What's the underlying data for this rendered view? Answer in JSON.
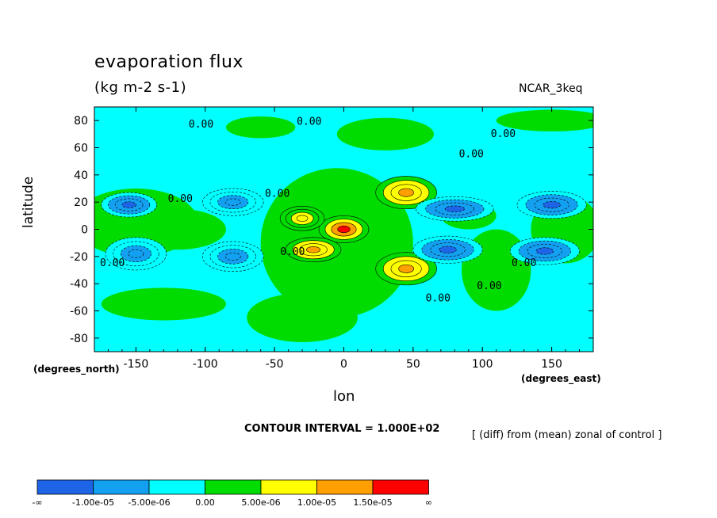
{
  "chart_data": {
    "type": "heatmap",
    "title": "evaporation flux",
    "subtitle": "(kg m-2 s-1)",
    "source_label": "NCAR_3keq",
    "xlabel": "lon",
    "xunits": "(degrees_east)",
    "ylabel": "latitude",
    "yunits": "(degrees_north)",
    "xlim": [
      -180,
      180
    ],
    "ylim": [
      -90,
      90
    ],
    "xticks": [
      -150,
      -100,
      -50,
      0,
      50,
      100,
      150
    ],
    "yticks": [
      -80,
      -60,
      -40,
      -20,
      0,
      20,
      40,
      60,
      80
    ],
    "contour_interval_text": "CONTOUR INTERVAL = 1.000E+02",
    "note": "[ (diff) from (mean) zonal of control ]",
    "contour_labels": [
      {
        "text": "0.00",
        "lon": -103,
        "lat": 75
      },
      {
        "text": "0.00",
        "lon": -25,
        "lat": 77
      },
      {
        "text": "0.00",
        "lon": 115,
        "lat": 68
      },
      {
        "text": "0.00",
        "lon": 92,
        "lat": 53
      },
      {
        "text": "0.00",
        "lon": -118,
        "lat": 20
      },
      {
        "text": "0.00",
        "lon": -48,
        "lat": 24
      },
      {
        "text": "0.00",
        "lon": -167,
        "lat": -27
      },
      {
        "text": "0.00",
        "lon": -37,
        "lat": -19
      },
      {
        "text": "0.00",
        "lon": 130,
        "lat": -27
      },
      {
        "text": "0.00",
        "lon": 68,
        "lat": -53
      },
      {
        "text": "0.00",
        "lon": 105,
        "lat": -44
      }
    ],
    "levels": [
      {
        "label": "-∞",
        "color": "#1e64e6"
      },
      {
        "label": "-1.00e-05",
        "color": "#14a0f0"
      },
      {
        "label": "-5.00e-06",
        "color": "#00ffff"
      },
      {
        "label": "0.00",
        "color": "#00dc00"
      },
      {
        "label": "5.00e-06",
        "color": "#ffff00"
      },
      {
        "label": "1.00e-05",
        "color": "#ffa000"
      },
      {
        "label": "1.50e-05",
        "color": "#ff0000"
      },
      {
        "label": "∞",
        "color": ""
      }
    ],
    "features": [
      {
        "name": "max-1",
        "lon": 0,
        "lat": 0,
        "rlon": 18,
        "rlat": 10,
        "value": 1.8e-05
      },
      {
        "name": "max-2",
        "lon": 45,
        "lat": 27,
        "rlon": 22,
        "rlat": 12,
        "value": 1.3e-05
      },
      {
        "name": "max-3",
        "lon": 45,
        "lat": -29,
        "rlon": 22,
        "rlat": 12,
        "value": 1.3e-05
      },
      {
        "name": "max-4",
        "lon": -22,
        "lat": -15,
        "rlon": 20,
        "rlat": 9,
        "value": 1.1e-05
      },
      {
        "name": "max-5",
        "lon": -30,
        "lat": 8,
        "rlon": 16,
        "rlat": 9,
        "value": 8e-06
      },
      {
        "name": "min-1",
        "lon": -155,
        "lat": 18,
        "rlon": 20,
        "rlat": 9,
        "value": -1.1e-05
      },
      {
        "name": "min-2",
        "lon": -80,
        "lat": 20,
        "rlon": 22,
        "rlat": 10,
        "value": -1e-05
      },
      {
        "name": "min-3",
        "lon": -150,
        "lat": -18,
        "rlon": 22,
        "rlat": 12,
        "value": -1e-05
      },
      {
        "name": "min-4",
        "lon": -80,
        "lat": -20,
        "rlon": 22,
        "rlat": 11,
        "value": -1e-05
      },
      {
        "name": "min-5",
        "lon": 80,
        "lat": 15,
        "rlon": 28,
        "rlat": 9,
        "value": -1.1e-05
      },
      {
        "name": "min-6",
        "lon": 150,
        "lat": 18,
        "rlon": 25,
        "rlat": 10,
        "value": -1.1e-05
      },
      {
        "name": "min-7",
        "lon": 75,
        "lat": -15,
        "rlon": 25,
        "rlat": 10,
        "value": -1.1e-05
      },
      {
        "name": "min-8",
        "lon": 145,
        "lat": -16,
        "rlon": 25,
        "rlat": 10,
        "value": -1.1e-05
      }
    ]
  }
}
